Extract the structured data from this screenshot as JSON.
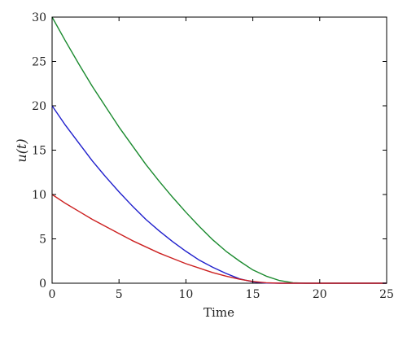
{
  "chart_data": {
    "type": "line",
    "xlabel": "Time",
    "ylabel": "u(t)",
    "xlim": [
      0,
      25
    ],
    "ylim": [
      0,
      30
    ],
    "x_ticks": [
      0,
      5,
      10,
      15,
      20,
      25
    ],
    "y_ticks": [
      0,
      5,
      10,
      15,
      20,
      25,
      30
    ],
    "grid": false,
    "legend": "none",
    "series": [
      {
        "color": "#1a8a2e",
        "points": [
          [
            0,
            30
          ],
          [
            1,
            27.3
          ],
          [
            2,
            24.7
          ],
          [
            3,
            22.2
          ],
          [
            4,
            19.9
          ],
          [
            5,
            17.6
          ],
          [
            6,
            15.5
          ],
          [
            7,
            13.4
          ],
          [
            8,
            11.5
          ],
          [
            9,
            9.7
          ],
          [
            10,
            8.0
          ],
          [
            11,
            6.4
          ],
          [
            12,
            4.9
          ],
          [
            13,
            3.6
          ],
          [
            14,
            2.5
          ],
          [
            15,
            1.5
          ],
          [
            16,
            0.8
          ],
          [
            17,
            0.3
          ],
          [
            18,
            0.05
          ],
          [
            19,
            0
          ],
          [
            20,
            0
          ],
          [
            21,
            0
          ],
          [
            22,
            0
          ],
          [
            23,
            0
          ],
          [
            24,
            0
          ],
          [
            25,
            0
          ]
        ]
      },
      {
        "color": "#1f1fcc",
        "points": [
          [
            0,
            20
          ],
          [
            1,
            17.8
          ],
          [
            2,
            15.8
          ],
          [
            3,
            13.8
          ],
          [
            4,
            12.0
          ],
          [
            5,
            10.3
          ],
          [
            6,
            8.7
          ],
          [
            7,
            7.2
          ],
          [
            8,
            5.9
          ],
          [
            9,
            4.7
          ],
          [
            10,
            3.6
          ],
          [
            11,
            2.6
          ],
          [
            12,
            1.8
          ],
          [
            13,
            1.1
          ],
          [
            14,
            0.5
          ],
          [
            15,
            0.15
          ],
          [
            16,
            0.02
          ],
          [
            17,
            0
          ],
          [
            18,
            0
          ],
          [
            19,
            0
          ],
          [
            20,
            0
          ],
          [
            21,
            0
          ],
          [
            22,
            0
          ],
          [
            23,
            0
          ],
          [
            24,
            0
          ],
          [
            25,
            0
          ]
        ]
      },
      {
        "color": "#cc2020",
        "points": [
          [
            0,
            10
          ],
          [
            1,
            9.0
          ],
          [
            2,
            8.1
          ],
          [
            3,
            7.2
          ],
          [
            4,
            6.4
          ],
          [
            5,
            5.6
          ],
          [
            6,
            4.8
          ],
          [
            7,
            4.1
          ],
          [
            8,
            3.4
          ],
          [
            9,
            2.8
          ],
          [
            10,
            2.2
          ],
          [
            11,
            1.7
          ],
          [
            12,
            1.2
          ],
          [
            13,
            0.8
          ],
          [
            14,
            0.45
          ],
          [
            15,
            0.2
          ],
          [
            16,
            0.05
          ],
          [
            17,
            0
          ],
          [
            18,
            0
          ],
          [
            19,
            0
          ],
          [
            20,
            0
          ],
          [
            21,
            0
          ],
          [
            22,
            0
          ],
          [
            23,
            0
          ],
          [
            24,
            0
          ],
          [
            25,
            0
          ]
        ]
      }
    ]
  }
}
